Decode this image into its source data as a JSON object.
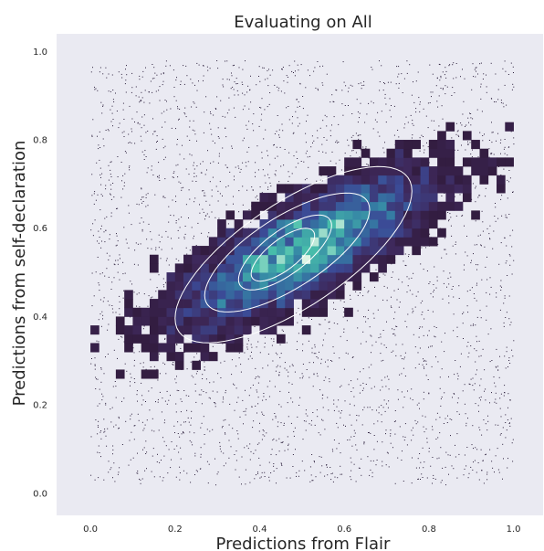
{
  "chart_data": {
    "type": "heatmap",
    "subtype": "2d-histogram with scatter points and density contours",
    "title": "Evaluating on All",
    "xlabel": "Predictions from Flair",
    "ylabel": "Predictions from self-declaration",
    "xlim": [
      -0.08,
      1.07
    ],
    "ylim": [
      -0.05,
      1.04
    ],
    "xticks": [
      "0.0",
      "0.2",
      "0.4",
      "0.6",
      "0.8",
      "1.0"
    ],
    "yticks": [
      "0.0",
      "0.2",
      "0.4",
      "0.6",
      "0.8",
      "1.0"
    ],
    "grid": false,
    "legend": "none",
    "colormap": "mako",
    "colors": {
      "background": "#eaeaf2",
      "points": "#2a1d3a",
      "contour": "#ffffff",
      "low": "#2b1630",
      "high": "#def5e5"
    },
    "density_peak": {
      "x": 0.5,
      "y": 0.55
    },
    "contours": [
      {
        "level": "outer",
        "x_range": [
          0.2,
          0.76
        ],
        "y_range": [
          0.34,
          0.74
        ]
      },
      {
        "level": "middle",
        "x_range": [
          0.27,
          0.66
        ],
        "y_range": [
          0.41,
          0.68
        ]
      },
      {
        "level": "inner",
        "x_range": [
          0.35,
          0.57
        ],
        "y_range": [
          0.46,
          0.63
        ]
      },
      {
        "level": "innermost",
        "x_range": [
          0.38,
          0.53
        ],
        "y_range": [
          0.48,
          0.6
        ]
      }
    ]
  }
}
